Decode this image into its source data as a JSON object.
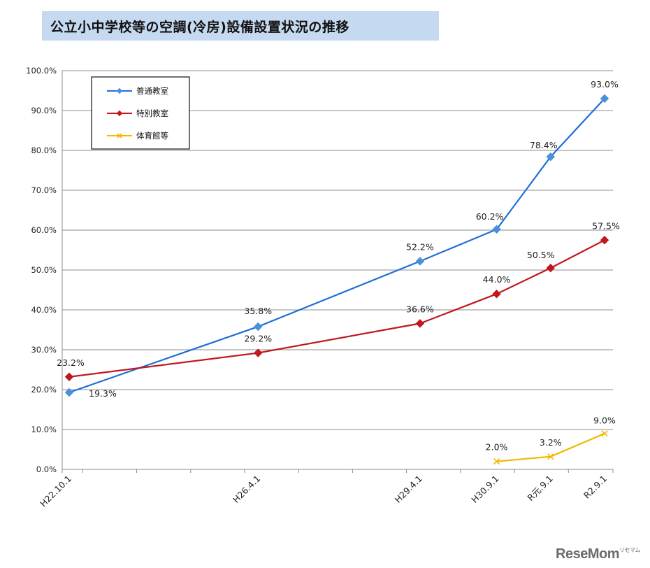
{
  "title": "公立小中学校等の空調(冷房)設備設置状況の推移",
  "watermark": "ReseMom",
  "watermark_sub": "リセマム",
  "chart_data": {
    "type": "line",
    "categories": [
      "H22.10.1",
      "H26.4.1",
      "H29.4.1",
      "H30.9.1",
      "R元.9.1",
      "R2.9.1"
    ],
    "x_position_years": [
      2010.75,
      2014.25,
      2017.25,
      2018.67,
      2019.67,
      2020.67
    ],
    "ylim": [
      0,
      100
    ],
    "yticks": [
      "0.0%",
      "10.0%",
      "20.0%",
      "30.0%",
      "40.0%",
      "50.0%",
      "60.0%",
      "70.0%",
      "80.0%",
      "90.0%",
      "100.0%"
    ],
    "grid": true,
    "legend_position": "top-left",
    "series": [
      {
        "name": "普通教室",
        "color": "#1f6fd6",
        "marker": "diamond",
        "values": [
          19.3,
          35.8,
          52.2,
          60.2,
          78.4,
          93.0
        ],
        "labels": [
          "19.3%",
          "35.8%",
          "52.2%",
          "60.2%",
          "78.4%",
          "93.0%"
        ]
      },
      {
        "name": "特別教室",
        "color": "#c0181e",
        "marker": "diamond",
        "values": [
          23.2,
          29.2,
          36.6,
          44.0,
          50.5,
          57.5
        ],
        "labels": [
          "23.2%",
          "29.2%",
          "36.6%",
          "44.0%",
          "50.5%",
          "57.5%"
        ]
      },
      {
        "name": "体育館等",
        "color": "#f2b800",
        "marker": "x",
        "values": [
          null,
          null,
          null,
          2.0,
          3.2,
          9.0
        ],
        "labels": [
          "",
          "",
          "",
          "2.0%",
          "3.2%",
          "9.0%"
        ]
      }
    ]
  }
}
